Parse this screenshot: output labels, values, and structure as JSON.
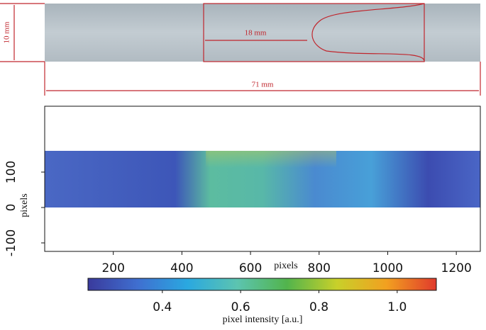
{
  "specimen": {
    "height_label": "10 mm",
    "gap_label": "18 mm",
    "length_label": "71 mm"
  },
  "chart_data": {
    "type": "heatmap",
    "xlabel": "pixels",
    "ylabel": "pixels",
    "xlim": [
      0,
      1270
    ],
    "ylim": [
      -124,
      286
    ],
    "xticks": [
      200,
      400,
      600,
      800,
      1000,
      1200
    ],
    "yticks": [
      -100,
      0,
      100
    ],
    "colorbar": {
      "label": "pixel intensity [a.u.]",
      "lim": [
        0.21,
        1.1
      ],
      "ticks": [
        0.4,
        0.6,
        0.8,
        {
          "value": 1,
          "label": "1.0"
        }
      ],
      "colors": [
        "#3a3a9c",
        "#3f6fd0",
        "#2aa8e0",
        "#5cc4b0",
        "#52b44c",
        "#c8d02a",
        "#f2a020",
        "#e03a2c"
      ]
    }
  }
}
